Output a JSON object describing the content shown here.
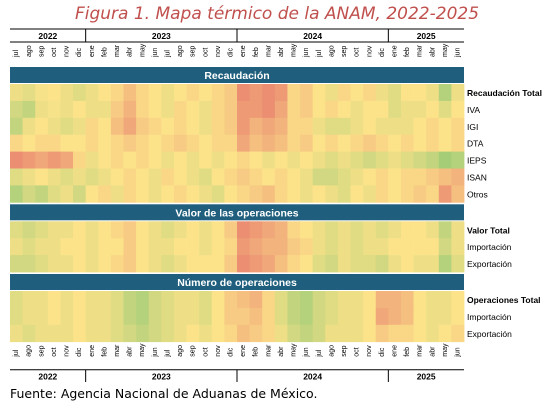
{
  "title": "Figura 1. Mapa térmico de la ANAM, 2022-2025",
  "source": "Fuente: Agencia Nacional de Aduanas de México.",
  "colors": {
    "header_band": "#1f5f7d",
    "low": "#e36a67",
    "mid": "#fce38a",
    "high": "#6bbf6b",
    "title": "#c0504d"
  },
  "chart_data": {
    "type": "heatmap",
    "scale": "red = low, yellow = middle, green = high (relative within each row)",
    "years": [
      {
        "label": "2022",
        "months": 6
      },
      {
        "label": "2023",
        "months": 12
      },
      {
        "label": "2024",
        "months": 12
      },
      {
        "label": "2025",
        "months": 6
      }
    ],
    "months": [
      "jul",
      "ago",
      "sep",
      "oct",
      "nov",
      "dic",
      "ene",
      "feb",
      "mar",
      "abr",
      "may",
      "jun",
      "jul",
      "ago",
      "sep",
      "oct",
      "nov",
      "dic",
      "ene",
      "feb",
      "mar",
      "abr",
      "may",
      "jun",
      "jul",
      "ago",
      "sep",
      "oct",
      "nov",
      "dic",
      "ene",
      "feb",
      "mar",
      "abr",
      "may",
      "jun"
    ],
    "sections": [
      {
        "title": "Recaudación",
        "rows": [
          {
            "label": "Recaudación Total",
            "bold": true,
            "values": [
              0.55,
              0.58,
              0.52,
              0.5,
              0.55,
              0.6,
              0.55,
              0.5,
              0.45,
              0.35,
              0.45,
              0.5,
              0.55,
              0.5,
              0.45,
              0.5,
              0.45,
              0.4,
              0.15,
              0.2,
              0.15,
              0.2,
              0.45,
              0.4,
              0.5,
              0.55,
              0.45,
              0.5,
              0.45,
              0.55,
              0.6,
              0.5,
              0.5,
              0.55,
              0.75,
              0.55
            ]
          },
          {
            "label": "IVA",
            "bold": false,
            "values": [
              0.65,
              0.7,
              0.55,
              0.52,
              0.55,
              0.5,
              0.55,
              0.55,
              0.4,
              0.3,
              0.45,
              0.5,
              0.55,
              0.45,
              0.5,
              0.55,
              0.45,
              0.4,
              0.2,
              0.2,
              0.15,
              0.25,
              0.45,
              0.4,
              0.5,
              0.45,
              0.5,
              0.55,
              0.5,
              0.5,
              0.6,
              0.55,
              0.55,
              0.5,
              0.6,
              0.5
            ]
          },
          {
            "label": "IGI",
            "bold": false,
            "values": [
              0.7,
              0.55,
              0.5,
              0.55,
              0.6,
              0.55,
              0.45,
              0.5,
              0.35,
              0.25,
              0.4,
              0.45,
              0.5,
              0.45,
              0.5,
              0.55,
              0.45,
              0.4,
              0.2,
              0.3,
              0.25,
              0.3,
              0.45,
              0.45,
              0.55,
              0.6,
              0.6,
              0.55,
              0.5,
              0.55,
              0.55,
              0.55,
              0.5,
              0.45,
              0.5,
              0.45
            ]
          },
          {
            "label": "DTA",
            "bold": false,
            "values": [
              0.45,
              0.5,
              0.45,
              0.45,
              0.5,
              0.5,
              0.45,
              0.5,
              0.45,
              0.4,
              0.45,
              0.5,
              0.45,
              0.4,
              0.45,
              0.5,
              0.45,
              0.45,
              0.25,
              0.35,
              0.3,
              0.35,
              0.45,
              0.4,
              0.5,
              0.45,
              0.5,
              0.45,
              0.4,
              0.45,
              0.5,
              0.45,
              0.5,
              0.45,
              0.5,
              0.45
            ]
          },
          {
            "label": "IEPS",
            "bold": false,
            "values": [
              0.15,
              0.2,
              0.25,
              0.2,
              0.25,
              0.45,
              0.55,
              0.5,
              0.45,
              0.5,
              0.45,
              0.5,
              0.55,
              0.5,
              0.55,
              0.5,
              0.55,
              0.5,
              0.45,
              0.5,
              0.55,
              0.5,
              0.55,
              0.5,
              0.55,
              0.6,
              0.55,
              0.6,
              0.65,
              0.6,
              0.55,
              0.6,
              0.65,
              0.7,
              0.8,
              0.75
            ]
          },
          {
            "label": "ISAN",
            "bold": false,
            "values": [
              0.6,
              0.55,
              0.5,
              0.55,
              0.6,
              0.55,
              0.6,
              0.55,
              0.5,
              0.45,
              0.5,
              0.55,
              0.45,
              0.5,
              0.55,
              0.6,
              0.5,
              0.45,
              0.4,
              0.45,
              0.5,
              0.45,
              0.5,
              0.55,
              0.65,
              0.65,
              0.6,
              0.55,
              0.5,
              0.45,
              0.5,
              0.45,
              0.45,
              0.4,
              0.35,
              0.3
            ]
          },
          {
            "label": "Otros",
            "bold": false,
            "values": [
              0.75,
              0.65,
              0.7,
              0.6,
              0.55,
              0.65,
              0.5,
              0.45,
              0.55,
              0.45,
              0.5,
              0.55,
              0.5,
              0.45,
              0.5,
              0.55,
              0.6,
              0.5,
              0.45,
              0.4,
              0.35,
              0.45,
              0.5,
              0.55,
              0.5,
              0.55,
              0.6,
              0.5,
              0.55,
              0.45,
              0.5,
              0.45,
              0.4,
              0.45,
              0.2,
              0.35
            ]
          }
        ]
      },
      {
        "title": "Valor de las operaciones",
        "rows": [
          {
            "label": "Valor Total",
            "bold": true,
            "values": [
              0.6,
              0.65,
              0.6,
              0.55,
              0.55,
              0.5,
              0.55,
              0.5,
              0.45,
              0.4,
              0.5,
              0.55,
              0.6,
              0.55,
              0.5,
              0.55,
              0.5,
              0.4,
              0.15,
              0.2,
              0.25,
              0.3,
              0.45,
              0.5,
              0.55,
              0.6,
              0.55,
              0.6,
              0.55,
              0.6,
              0.55,
              0.5,
              0.5,
              0.55,
              0.7,
              0.55
            ]
          },
          {
            "label": "Importación",
            "bold": false,
            "values": [
              0.55,
              0.6,
              0.55,
              0.55,
              0.5,
              0.5,
              0.55,
              0.5,
              0.5,
              0.4,
              0.5,
              0.55,
              0.55,
              0.5,
              0.5,
              0.55,
              0.5,
              0.45,
              0.2,
              0.25,
              0.3,
              0.3,
              0.4,
              0.45,
              0.55,
              0.6,
              0.55,
              0.6,
              0.55,
              0.55,
              0.5,
              0.5,
              0.5,
              0.5,
              0.65,
              0.55
            ]
          },
          {
            "label": "Exportación",
            "bold": false,
            "values": [
              0.65,
              0.65,
              0.6,
              0.55,
              0.55,
              0.5,
              0.55,
              0.5,
              0.45,
              0.4,
              0.5,
              0.55,
              0.6,
              0.55,
              0.5,
              0.5,
              0.5,
              0.4,
              0.15,
              0.2,
              0.25,
              0.35,
              0.45,
              0.5,
              0.6,
              0.65,
              0.55,
              0.6,
              0.6,
              0.65,
              0.55,
              0.5,
              0.55,
              0.55,
              0.75,
              0.6
            ]
          }
        ]
      },
      {
        "title": "Número de operaciones",
        "rows": [
          {
            "label": "Operaciones Total",
            "bold": true,
            "values": [
              0.6,
              0.55,
              0.55,
              0.5,
              0.55,
              0.5,
              0.55,
              0.55,
              0.6,
              0.7,
              0.75,
              0.65,
              0.6,
              0.55,
              0.55,
              0.6,
              0.5,
              0.4,
              0.35,
              0.3,
              0.45,
              0.6,
              0.7,
              0.75,
              0.65,
              0.6,
              0.55,
              0.55,
              0.5,
              0.3,
              0.3,
              0.35,
              0.5,
              0.55,
              0.55,
              0.5
            ]
          },
          {
            "label": "Importación",
            "bold": false,
            "values": [
              0.6,
              0.55,
              0.55,
              0.5,
              0.55,
              0.5,
              0.55,
              0.55,
              0.6,
              0.7,
              0.75,
              0.65,
              0.6,
              0.55,
              0.55,
              0.6,
              0.5,
              0.4,
              0.4,
              0.35,
              0.45,
              0.6,
              0.7,
              0.75,
              0.65,
              0.6,
              0.55,
              0.55,
              0.5,
              0.25,
              0.3,
              0.35,
              0.5,
              0.55,
              0.55,
              0.5
            ]
          },
          {
            "label": "Exportación",
            "bold": false,
            "values": [
              0.55,
              0.6,
              0.55,
              0.55,
              0.55,
              0.5,
              0.55,
              0.55,
              0.6,
              0.65,
              0.7,
              0.65,
              0.6,
              0.55,
              0.5,
              0.55,
              0.5,
              0.45,
              0.35,
              0.4,
              0.45,
              0.55,
              0.65,
              0.7,
              0.65,
              0.55,
              0.55,
              0.55,
              0.5,
              0.4,
              0.45,
              0.45,
              0.5,
              0.55,
              0.5,
              0.45
            ]
          }
        ]
      }
    ]
  }
}
